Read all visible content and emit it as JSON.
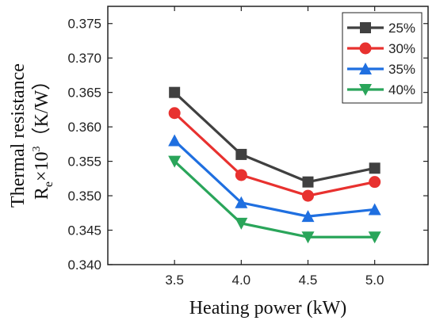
{
  "chart_data": {
    "type": "line",
    "xlabel": "Heating power (kW)",
    "ylabel_line1": "Thermal resistance",
    "ylabel_line2": "R",
    "ylabel_sub": "e",
    "ylabel_mid": "×10",
    "ylabel_sup": "3",
    "ylabel_unit": "（K/W）",
    "x": [
      3.5,
      4.0,
      4.5,
      5.0
    ],
    "x_tick_labels": [
      "3.5",
      "4.0",
      "4.5",
      "5.0"
    ],
    "xlim": [
      3.0,
      5.4
    ],
    "ylim": [
      0.34,
      0.3775
    ],
    "y_ticks": [
      0.34,
      0.345,
      0.35,
      0.355,
      0.36,
      0.365,
      0.37,
      0.375
    ],
    "y_tick_labels": [
      "0.340",
      "0.345",
      "0.350",
      "0.355",
      "0.360",
      "0.365",
      "0.370",
      "0.375"
    ],
    "grid": false,
    "legend_position": "top-right",
    "series": [
      {
        "name": "25%",
        "color": "#404040",
        "marker": "square",
        "values": [
          0.365,
          0.356,
          0.352,
          0.354
        ]
      },
      {
        "name": "30%",
        "color": "#e8312f",
        "marker": "circle",
        "values": [
          0.362,
          0.353,
          0.35,
          0.352
        ]
      },
      {
        "name": "35%",
        "color": "#1f6fe0",
        "marker": "triangle-up",
        "values": [
          0.358,
          0.349,
          0.347,
          0.348
        ]
      },
      {
        "name": "40%",
        "color": "#2aa55a",
        "marker": "triangle-down",
        "values": [
          0.355,
          0.346,
          0.344,
          0.344
        ]
      }
    ]
  }
}
